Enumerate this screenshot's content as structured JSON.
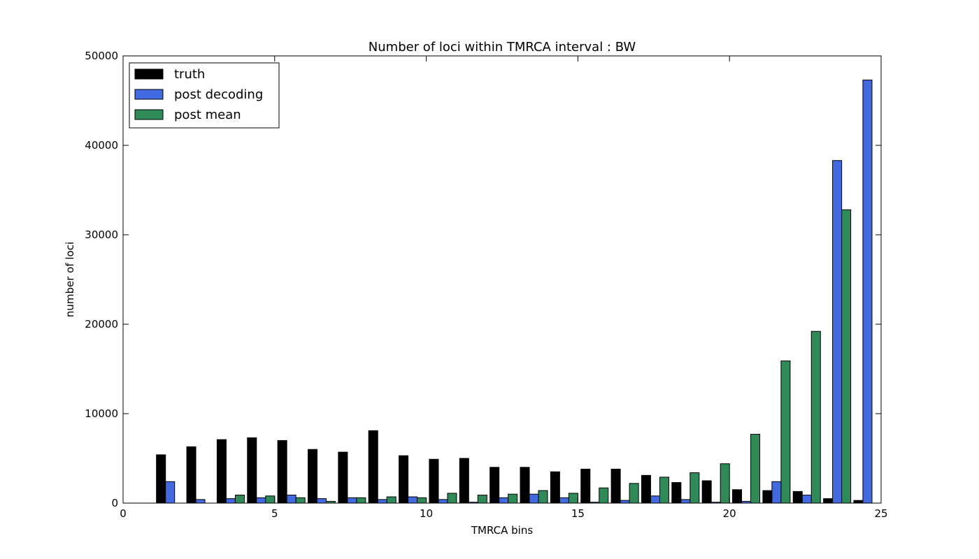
{
  "chart_data": {
    "type": "bar",
    "title": "Number of loci within TMRCA interval : BW",
    "xlabel": "TMRCA bins",
    "ylabel": "number of loci",
    "xlim": [
      0,
      25
    ],
    "ylim": [
      0,
      50000
    ],
    "xticks": [
      0,
      5,
      10,
      15,
      20,
      25
    ],
    "yticks": [
      0,
      10000,
      20000,
      30000,
      40000,
      50000
    ],
    "bin_width": 0.3,
    "grid": false,
    "legend_position": "top-left",
    "series": [
      {
        "name": "truth",
        "color": "#000000",
        "x": [
          1.1,
          2.1,
          3.1,
          4.1,
          5.1,
          6.1,
          7.1,
          8.1,
          9.1,
          10.1,
          11.1,
          12.1,
          13.1,
          14.1,
          15.1,
          16.1,
          17.1,
          18.1,
          19.1,
          20.1,
          21.1,
          22.1,
          23.1,
          24.1
        ],
        "values": [
          5400,
          6300,
          7100,
          7300,
          7000,
          6000,
          5700,
          8100,
          5300,
          4900,
          5000,
          4000,
          4000,
          3500,
          3800,
          3800,
          3100,
          2300,
          2500,
          1500,
          1400,
          1300,
          500,
          300
        ]
      },
      {
        "name": "post decoding",
        "color": "#4169e1",
        "x": [
          1.4,
          2.4,
          3.4,
          4.4,
          5.4,
          6.4,
          7.4,
          8.4,
          9.4,
          10.4,
          11.4,
          12.4,
          13.4,
          14.4,
          15.4,
          16.4,
          17.4,
          18.4,
          19.4,
          20.4,
          21.4,
          22.4,
          23.4,
          24.4
        ],
        "values": [
          2400,
          400,
          500,
          600,
          900,
          500,
          600,
          400,
          700,
          400,
          100,
          600,
          1000,
          600,
          100,
          300,
          800,
          400,
          100,
          200,
          2400,
          900,
          38300,
          47300
        ]
      },
      {
        "name": "post mean",
        "color": "#2e8b57",
        "x": [
          0.7,
          1.7,
          2.7,
          3.7,
          4.7,
          5.7,
          6.7,
          7.7,
          8.7,
          9.7,
          10.7,
          11.7,
          12.7,
          13.7,
          14.7,
          15.7,
          16.7,
          17.7,
          18.7,
          19.7,
          20.7,
          21.7,
          22.7,
          23.7
        ],
        "values": [
          0,
          0,
          0,
          900,
          800,
          600,
          200,
          600,
          700,
          600,
          1100,
          900,
          1000,
          1400,
          1100,
          1700,
          2200,
          2900,
          3400,
          4400,
          7700,
          15900,
          19200,
          32800
        ]
      }
    ]
  }
}
